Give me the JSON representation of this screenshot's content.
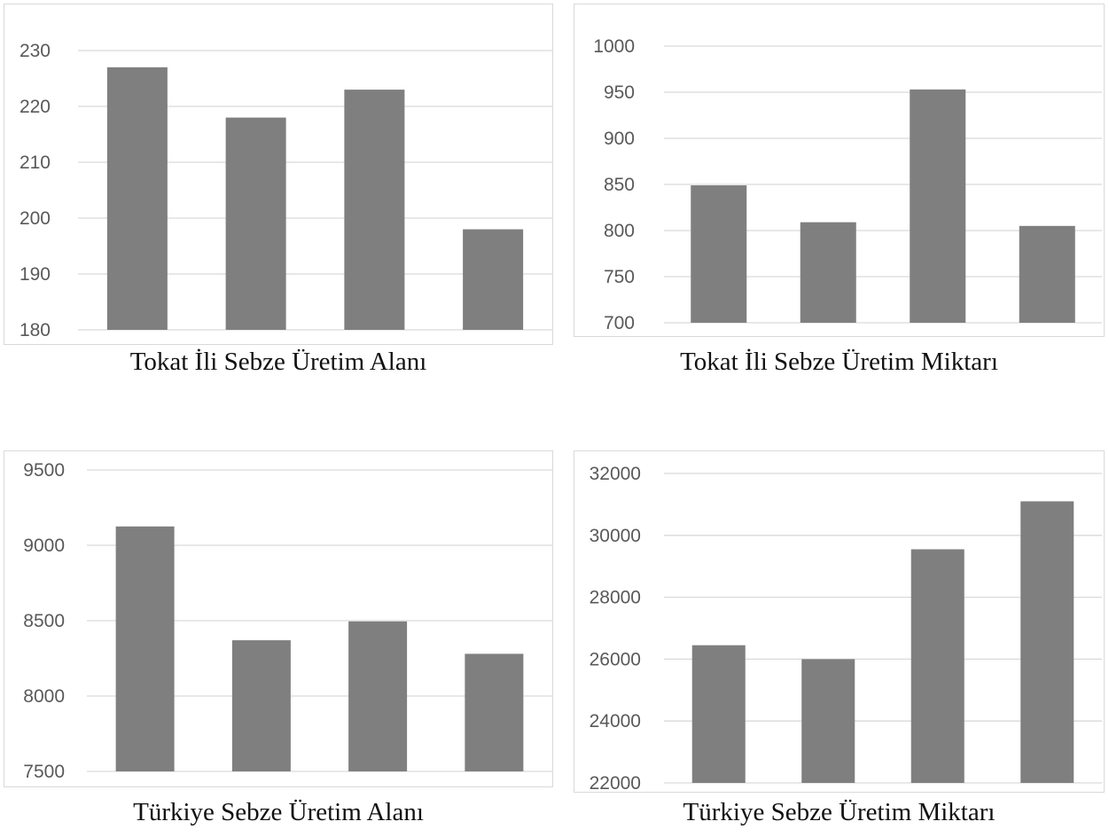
{
  "chart_data": [
    {
      "type": "bar",
      "title": "Tokat İli Sebze Üretim Alanı",
      "categories": [
        "",
        "",
        "",
        ""
      ],
      "values": [
        227,
        218,
        223,
        198
      ],
      "ylim": [
        180,
        230
      ],
      "yticks": [
        180,
        190,
        200,
        210,
        220,
        230
      ],
      "ytick_labels": [
        "180",
        "190",
        "200",
        "210",
        "220",
        "230"
      ],
      "grid": true,
      "bar_color": "#7f7f7f"
    },
    {
      "type": "bar",
      "title": "Tokat İli Sebze Üretim Miktarı",
      "categories": [
        "",
        "",
        "",
        ""
      ],
      "values": [
        849,
        809,
        953,
        805
      ],
      "ylim": [
        700,
        1000
      ],
      "yticks": [
        700,
        750,
        800,
        850,
        900,
        950,
        1000
      ],
      "ytick_labels": [
        "700",
        "750",
        "800",
        "850",
        "900",
        "950",
        "1000"
      ],
      "grid": true,
      "bar_color": "#7f7f7f"
    },
    {
      "type": "bar",
      "title": "Türkiye Sebze Üretim Alanı",
      "categories": [
        "",
        "",
        "",
        ""
      ],
      "values": [
        9125,
        8370,
        8495,
        8280
      ],
      "ylim": [
        7500,
        9500
      ],
      "yticks": [
        7500,
        8000,
        8500,
        9000,
        9500
      ],
      "ytick_labels": [
        "7500",
        "8000",
        "8500",
        "9000",
        "9500"
      ],
      "grid": true,
      "bar_color": "#7f7f7f"
    },
    {
      "type": "bar",
      "title": "Türkiye Sebze Üretim Miktarı",
      "categories": [
        "",
        "",
        "",
        ""
      ],
      "values": [
        26450,
        26000,
        29550,
        31100
      ],
      "ylim": [
        22000,
        32000
      ],
      "yticks": [
        22000,
        24000,
        26000,
        28000,
        30000,
        32000
      ],
      "ytick_labels": [
        "22000",
        "24000",
        "26000",
        "28000",
        "30000",
        "32000"
      ],
      "grid": true,
      "bar_color": "#7f7f7f"
    }
  ]
}
